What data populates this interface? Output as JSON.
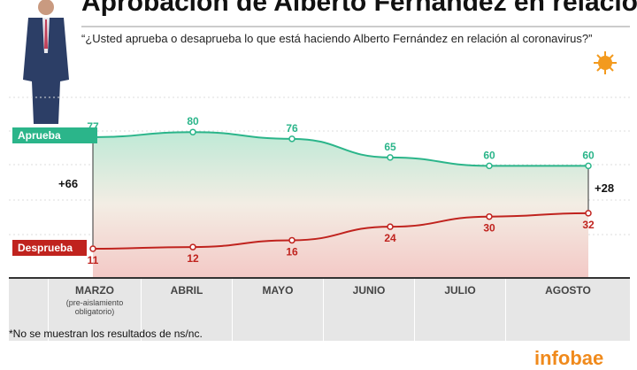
{
  "header": {
    "title": "Aprobación de Alberto Fernández en relación",
    "subtitle": "“¿Usted aprueba o desaprueba lo que está haciendo Alberto Fernández en relación al coronavirus?”"
  },
  "footnote": "*No se muestran los resultados de ns/nc.",
  "logo": "infobae",
  "chart_data": {
    "type": "area",
    "categories": [
      "MARZO",
      "ABRIL",
      "MAYO",
      "JUNIO",
      "JULIO",
      "AGOSTO"
    ],
    "category_sublabel": "(pre-aislamiento obligatorio)",
    "series": [
      {
        "name": "Aprueba",
        "values": [
          77,
          80,
          76,
          65,
          60,
          60
        ],
        "color": "#2bb58a"
      },
      {
        "name": "Desprueba",
        "values": [
          11,
          12,
          16,
          24,
          30,
          32
        ],
        "color": "#c0231e"
      }
    ],
    "annotations": {
      "first_gap": "+66",
      "last_gap": "+28"
    },
    "grid": true
  }
}
